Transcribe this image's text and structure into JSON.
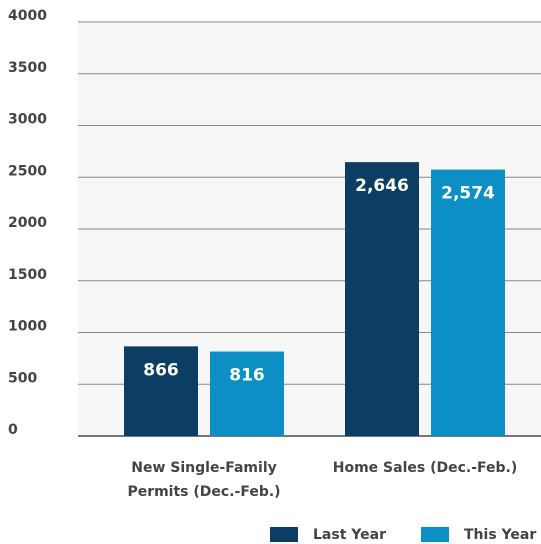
{
  "chart_data": {
    "type": "bar",
    "categories": [
      "New Single-Family Permits (Dec.-Feb.)",
      "Home Sales (Dec.-Feb.)"
    ],
    "series": [
      {
        "name": "Last Year",
        "color": "#0c3d63",
        "values": [
          866,
          2646
        ],
        "value_labels": [
          "866",
          "2,646"
        ]
      },
      {
        "name": "This Year",
        "color": "#0b8fc4",
        "values": [
          816,
          2574
        ],
        "value_labels": [
          "816",
          "2,574"
        ]
      }
    ],
    "ylim": [
      0,
      4000
    ],
    "yticks": [
      0,
      500,
      1000,
      1500,
      2000,
      2500,
      3000,
      3500,
      4000
    ],
    "grid": true,
    "legend": "bottom-right"
  }
}
